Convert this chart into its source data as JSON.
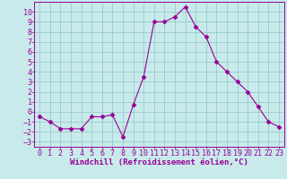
{
  "x": [
    0,
    1,
    2,
    3,
    4,
    5,
    6,
    7,
    8,
    9,
    10,
    11,
    12,
    13,
    14,
    15,
    16,
    17,
    18,
    19,
    20,
    21,
    22,
    23
  ],
  "y": [
    -0.5,
    -1.0,
    -1.7,
    -1.7,
    -1.7,
    -0.5,
    -0.5,
    -0.3,
    -2.5,
    0.7,
    3.5,
    9.0,
    9.0,
    9.5,
    10.5,
    8.5,
    7.5,
    5.0,
    4.0,
    3.0,
    2.0,
    0.5,
    -1.0,
    -1.5
  ],
  "line_color": "#990099",
  "marker": "D",
  "marker_size": 2.5,
  "bg_color": "#c8eaea",
  "grid_color": "#99cccc",
  "xlabel": "Windchill (Refroidissement éolien,°C)",
  "xlabel_fontsize": 6.5,
  "tick_fontsize": 6,
  "xlim": [
    -0.5,
    23.5
  ],
  "ylim": [
    -3.5,
    11.0
  ],
  "yticks": [
    -3,
    -2,
    -1,
    0,
    1,
    2,
    3,
    4,
    5,
    6,
    7,
    8,
    9,
    10
  ],
  "xticks": [
    0,
    1,
    2,
    3,
    4,
    5,
    6,
    7,
    8,
    9,
    10,
    11,
    12,
    13,
    14,
    15,
    16,
    17,
    18,
    19,
    20,
    21,
    22,
    23
  ]
}
